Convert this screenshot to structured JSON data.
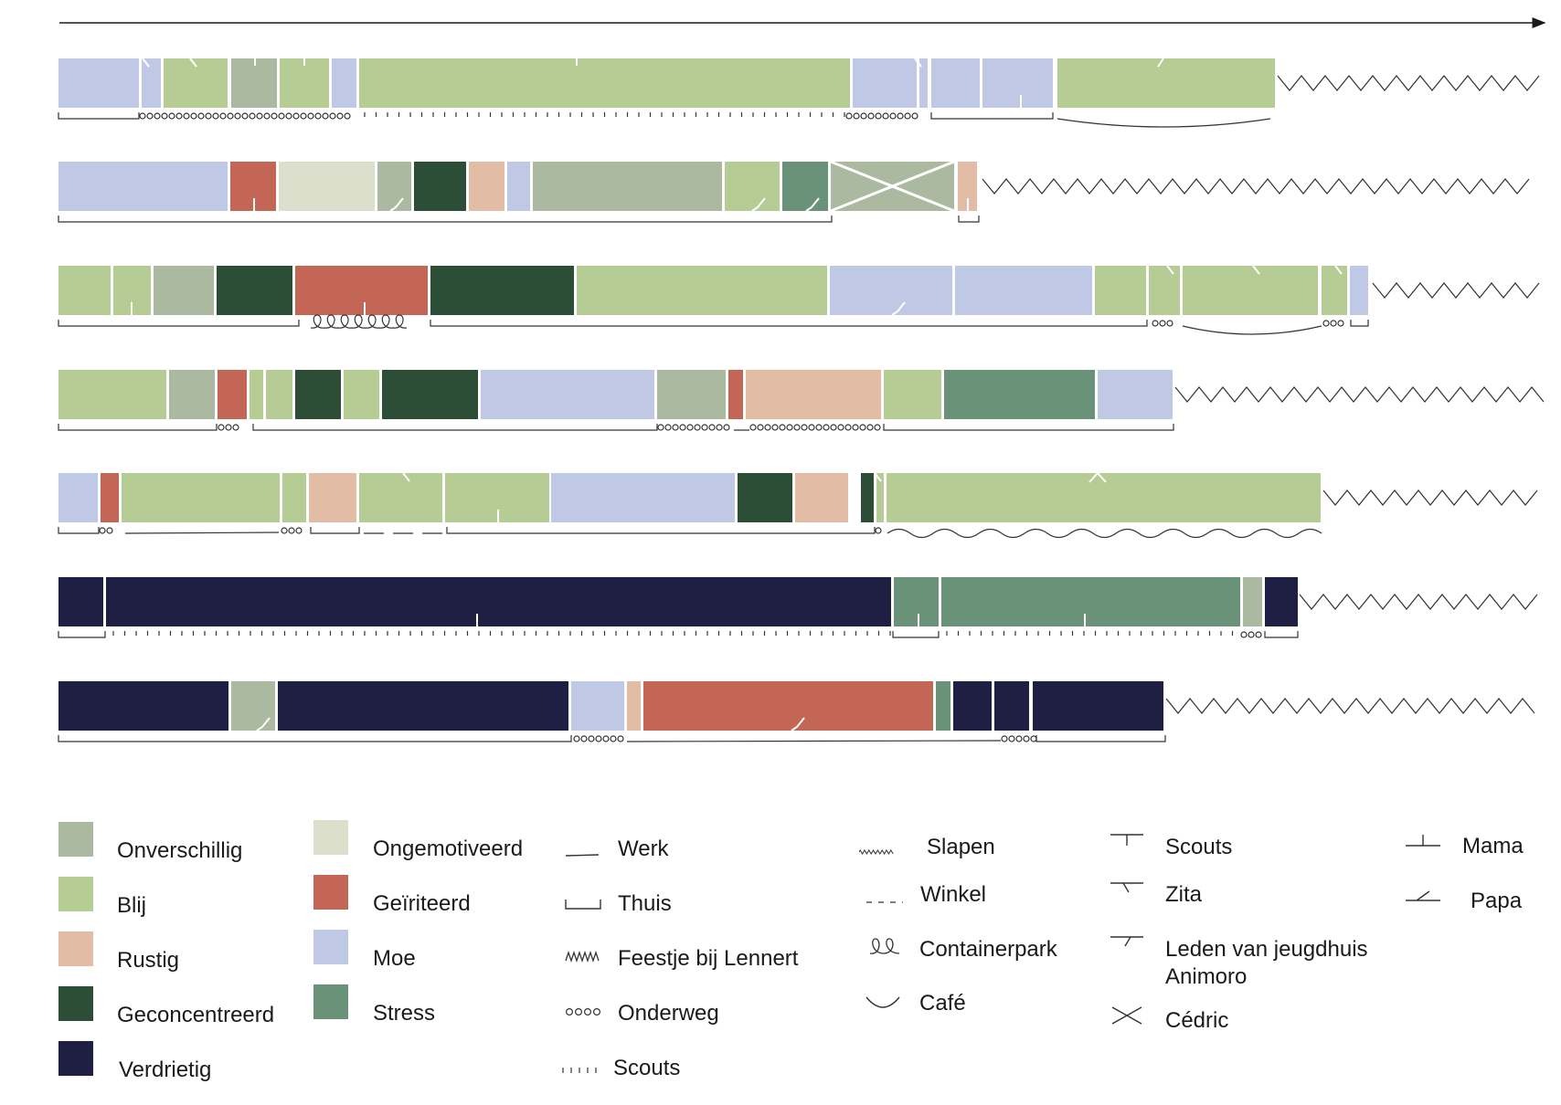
{
  "colors": {
    "onverschillig": "#abb9a0",
    "blij": "#b5cc94",
    "rustig": "#e3bca5",
    "geconcentreerd": "#2c4d36",
    "verdrietig": "#1e1f42",
    "ongemotiveerd": "#dcdfcb",
    "geiriteerd": "#c36656",
    "moe": "#bfc9e6",
    "stress": "#6a9279",
    "ink": "#333333"
  },
  "timelines": [
    {
      "row": 1,
      "states": [
        "moe",
        "moe",
        "blij",
        "onverschillig",
        "blij",
        "moe",
        "blij",
        "moe",
        "moe",
        "moe",
        "moe",
        "blij"
      ],
      "activities": [
        "thuis",
        "onderweg",
        "scouts",
        "onderweg",
        "thuis",
        "cafe"
      ]
    },
    {
      "row": 2,
      "states": [
        "moe",
        "geiriteerd",
        "ongemotiveerd",
        "onverschillig",
        "geconcentreerd",
        "rustig",
        "moe",
        "onverschillig",
        "blij",
        "stress",
        "onverschillig",
        "rustig"
      ],
      "activities": [
        "thuis",
        "thuis"
      ]
    },
    {
      "row": 3,
      "states": [
        "blij",
        "blij",
        "onverschillig",
        "geconcentreerd",
        "geiriteerd",
        "geconcentreerd",
        "blij",
        "moe",
        "moe",
        "blij",
        "blij",
        "blij",
        "blij",
        "moe"
      ],
      "activities": [
        "thuis",
        "containerpark",
        "thuis",
        "onderweg",
        "cafe",
        "onderweg",
        "thuis"
      ]
    },
    {
      "row": 4,
      "states": [
        "blij",
        "onverschillig",
        "geiriteerd",
        "blij",
        "blij",
        "geconcentreerd",
        "blij",
        "geconcentreerd",
        "moe",
        "onverschillig",
        "geiriteerd",
        "rustig",
        "blij",
        "stress",
        "moe"
      ],
      "activities": [
        "thuis",
        "onderweg",
        "thuis",
        "onderweg",
        "winkel",
        "onderweg",
        "thuis"
      ]
    },
    {
      "row": 5,
      "states": [
        "moe",
        "geiriteerd",
        "blij",
        "blij",
        "rustig",
        "blij",
        "blij",
        "moe",
        "geconcentreerd",
        "rustig",
        "geconcentreerd",
        "blij",
        "blij"
      ],
      "activities": [
        "thuis",
        "onderweg",
        "werk",
        "onderweg",
        "thuis",
        "winkel",
        "thuis",
        "onderweg",
        "feestje"
      ]
    },
    {
      "row": 6,
      "states": [
        "verdrietig",
        "verdrietig",
        "stress",
        "stress",
        "onverschillig",
        "verdrietig"
      ],
      "activities": [
        "thuis",
        "scouts",
        "thuis",
        "scouts",
        "onderweg",
        "thuis"
      ]
    },
    {
      "row": 7,
      "states": [
        "verdrietig",
        "onverschillig",
        "verdrietig",
        "moe",
        "rustig",
        "geiriteerd",
        "stress",
        "verdrietig",
        "verdrietig",
        "verdrietig"
      ],
      "activities": [
        "thuis",
        "onderweg",
        "werk",
        "onderweg",
        "thuis"
      ]
    }
  ],
  "legend": {
    "emotions": [
      {
        "key": "onverschillig",
        "label": "Onverschillig"
      },
      {
        "key": "blij",
        "label": "Blij"
      },
      {
        "key": "rustig",
        "label": "Rustig"
      },
      {
        "key": "geconcentreerd",
        "label": "Geconcentreerd"
      },
      {
        "key": "verdrietig",
        "label": "Verdrietig"
      },
      {
        "key": "ongemotiveerd",
        "label": "Ongemotiveerd"
      },
      {
        "key": "geiriteerd",
        "label": "Geïriteerd"
      },
      {
        "key": "moe",
        "label": "Moe"
      },
      {
        "key": "stress",
        "label": "Stress"
      }
    ],
    "places": [
      {
        "key": "werk",
        "label": "Werk"
      },
      {
        "key": "thuis",
        "label": "Thuis"
      },
      {
        "key": "feestje",
        "label": "Feestje bij Lennert"
      },
      {
        "key": "onderweg",
        "label": "Onderweg"
      },
      {
        "key": "scouts",
        "label": "Scouts"
      },
      {
        "key": "slapen",
        "label": "Slapen"
      },
      {
        "key": "winkel",
        "label": "Winkel"
      },
      {
        "key": "containerpark",
        "label": "Containerpark"
      },
      {
        "key": "cafe",
        "label": "Café"
      }
    ],
    "people": [
      {
        "key": "scouts",
        "label": "Scouts"
      },
      {
        "key": "zita",
        "label": "Zita"
      },
      {
        "key": "jeugdhuis",
        "label": "Leden van jeugdhuis Animoro"
      },
      {
        "key": "cedric",
        "label": "Cédric"
      },
      {
        "key": "mama",
        "label": "Mama"
      },
      {
        "key": "papa",
        "label": "Papa"
      }
    ]
  }
}
